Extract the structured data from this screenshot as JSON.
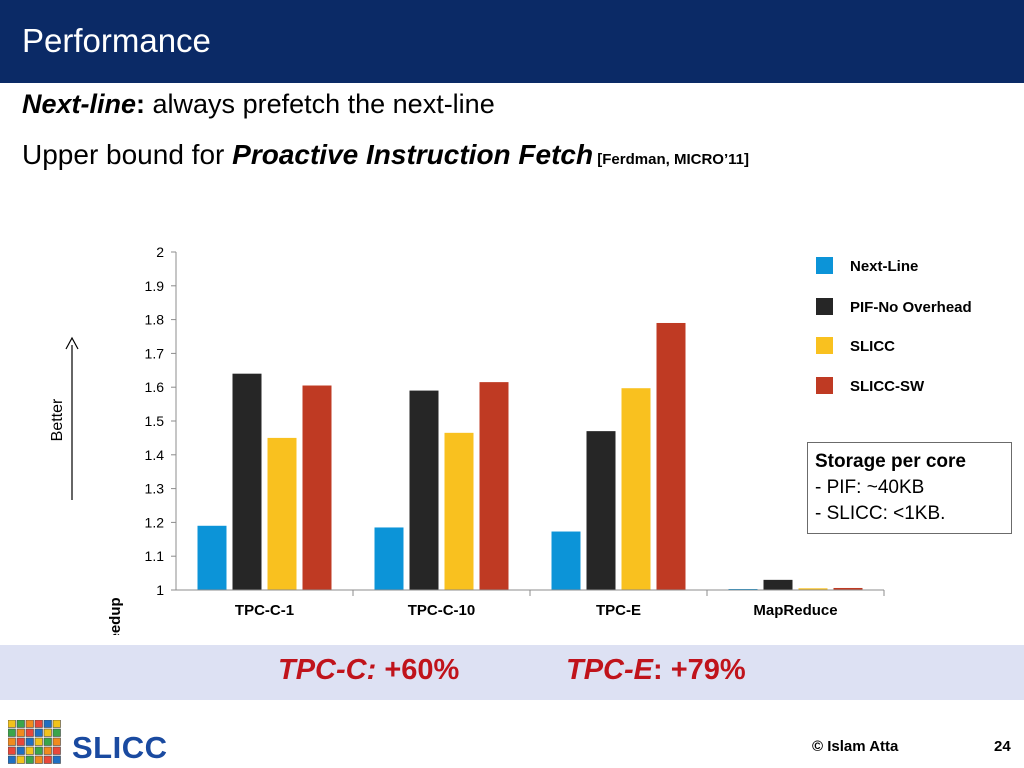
{
  "header": {
    "title": "Performance"
  },
  "text": {
    "line1_em": "Next-line",
    "line1_colon": ":",
    "line1_rest": " always prefetch the next-line",
    "line2_prefix": "Upper bound for ",
    "line2_em": "Proactive Instruction Fetch",
    "line2_cite": " [Ferdman, MICRO’11]"
  },
  "better_label": "Better",
  "storage_box": {
    "heading": "Storage per core",
    "lines": [
      "- PIF: ~40KB",
      "- SLICC: <1KB."
    ]
  },
  "highlight": {
    "item1_em": "TPC-C:",
    "item1_val": " +60%",
    "item2_em": "TPC-E",
    "item2_val": ": +79%"
  },
  "footer": {
    "logo_text": "SLICC",
    "copyright": "© Islam Atta",
    "page_number": "24"
  },
  "colors": {
    "title_bar": "#0b2a66",
    "highlight_text": "#c0131b",
    "highlight_band": "#dde1f3"
  },
  "chart_data": {
    "type": "bar",
    "categories": [
      "TPC-C-1",
      "TPC-C-10",
      "TPC-E",
      "MapReduce"
    ],
    "series": [
      {
        "name": "Next-Line",
        "color": "#0c94d8",
        "values": [
          1.19,
          1.185,
          1.173,
          0.998
        ]
      },
      {
        "name": "PIF-No Overhead",
        "color": "#262626",
        "values": [
          1.64,
          1.59,
          1.47,
          1.03
        ]
      },
      {
        "name": "SLICC",
        "color": "#f9c11f",
        "values": [
          1.45,
          1.465,
          1.597,
          1.005
        ]
      },
      {
        "name": "SLICC-SW",
        "color": "#bf3a23",
        "values": [
          1.605,
          1.615,
          1.79,
          1.006
        ]
      }
    ],
    "ylabel": "Speedup",
    "ylim": [
      1,
      2
    ],
    "yticks": [
      "1",
      "1.1",
      "1.2",
      "1.3",
      "1.4",
      "1.5",
      "1.6",
      "1.7",
      "1.8",
      "1.9",
      "2"
    ],
    "legend_position": "right",
    "grid": false
  }
}
